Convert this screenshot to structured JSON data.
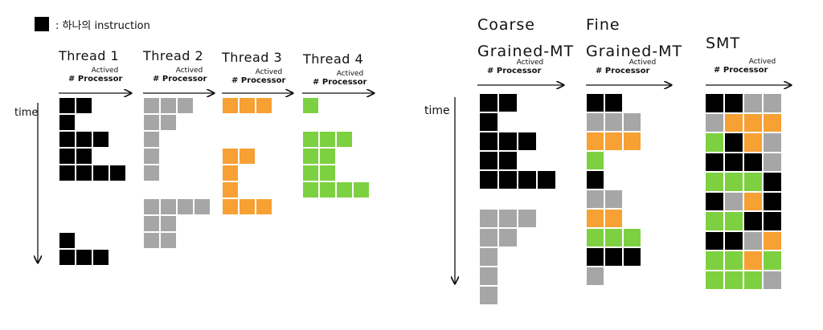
{
  "legend": {
    "label": ": 하나의 instruction"
  },
  "colors": {
    "black": "#000000",
    "gray": "#a6a6a6",
    "orange": "#f7a033",
    "green": "#7dd141",
    "grid": "#ffffff"
  },
  "axis_label": "time",
  "left": {
    "threads": [
      {
        "name": "Thread 1",
        "l1": "Actived",
        "l2": "# Processor",
        "color": "black",
        "rows": [
          [
            0,
            1
          ],
          [
            0
          ],
          [
            0,
            1,
            2
          ],
          [
            0,
            1
          ],
          [
            0,
            1,
            2,
            3
          ],
          null,
          null,
          null,
          [
            0
          ],
          [
            0,
            1,
            2
          ]
        ]
      },
      {
        "name": "Thread 2",
        "l1": "Actived",
        "l2": "# Processor",
        "color": "gray",
        "rows": [
          [
            0,
            1,
            2
          ],
          [
            0,
            1
          ],
          [
            0
          ],
          [
            0
          ],
          [
            0
          ],
          null,
          [
            0,
            1,
            2,
            3
          ],
          [
            0,
            1
          ],
          [
            0,
            1
          ]
        ]
      },
      {
        "name": "Thread 3",
        "l1": "Actived",
        "l2": "# Processor",
        "color": "orange",
        "rows": [
          [
            0,
            1,
            2
          ],
          null,
          null,
          [
            0,
            1
          ],
          [
            0
          ],
          [
            0
          ],
          [
            0,
            1,
            2
          ]
        ]
      },
      {
        "name": "Thread 4",
        "l1": "Actived",
        "l2": "# Processor",
        "color": "green",
        "rows": [
          [
            0
          ],
          null,
          [
            0,
            1,
            2
          ],
          [
            0,
            1
          ],
          [
            0,
            1
          ],
          [
            0,
            1,
            2,
            3
          ]
        ]
      }
    ]
  },
  "right": {
    "columns": [
      {
        "t1": "Coarse",
        "t2": "Grained-MT",
        "l1": "Actived",
        "l2": "# Processor",
        "rows": [
          "KK",
          "K",
          "KKK",
          "KK",
          "KKKK",
          "",
          "GGG",
          "GG",
          "G",
          "G",
          "G"
        ]
      },
      {
        "t1": "Fine",
        "t2": "Grained-MT",
        "l1": "Actived",
        "l2": "# Processor",
        "rows": [
          "KK",
          "GGG",
          "OOO",
          "N",
          "K",
          "GG",
          "OO",
          "NNN",
          "KKK",
          "G"
        ]
      },
      {
        "t1": "",
        "t2": "SMT",
        "l1": "Actived",
        "l2": "# Processor",
        "rows": [
          "KKGG",
          "GOOO",
          "NKOG",
          "KKKG",
          "NNNK",
          "KGOK",
          "NNKK",
          "KKGO",
          "NNON",
          "NNNG"
        ]
      }
    ]
  }
}
